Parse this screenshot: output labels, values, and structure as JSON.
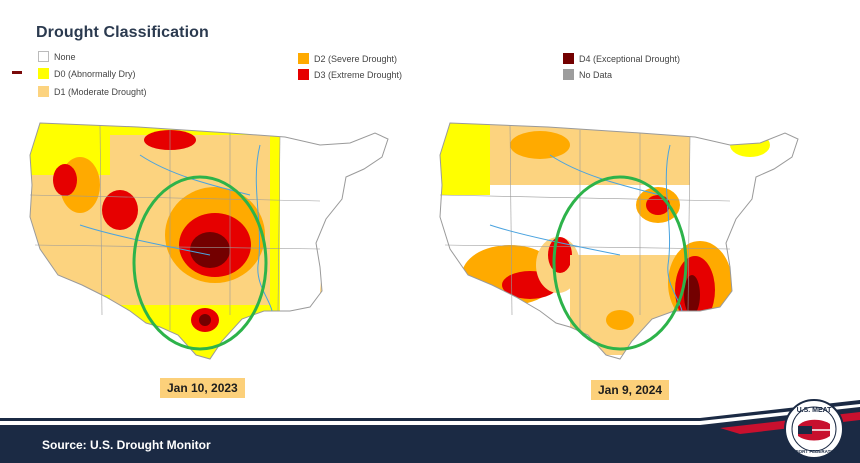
{
  "legend": {
    "title": "Drought Classification",
    "items": [
      {
        "label": "None",
        "color": "#ffffff"
      },
      {
        "label": "D0 (Abnormally Dry)",
        "color": "#ffff00"
      },
      {
        "label": "D1 (Moderate Drought)",
        "color": "#fcd37f"
      },
      {
        "label": "D2 (Severe Drought)",
        "color": "#ffaa00"
      },
      {
        "label": "D3 (Extreme Drought)",
        "color": "#e60000"
      },
      {
        "label": "D4 (Exceptional Drought)",
        "color": "#730000"
      },
      {
        "label": "No Data",
        "color": "#9d9d9d"
      }
    ]
  },
  "maps": [
    {
      "date_label": "Jan 10, 2023",
      "highlight": "green-ellipse"
    },
    {
      "date_label": "Jan 9, 2024",
      "highlight": "green-ellipse"
    }
  ],
  "footer": {
    "source": "Source: U.S. Drought Monitor"
  },
  "colors": {
    "navy": "#1b2a44",
    "highlight_ring": "#2db34a",
    "label_bg": "#fcd07a",
    "rivers": "#4aa3df",
    "state_lines": "#9a9a9a"
  },
  "logo": {
    "text_top": "U.S. MEAT",
    "text_bottom": "EXPORT FEDERATION"
  }
}
